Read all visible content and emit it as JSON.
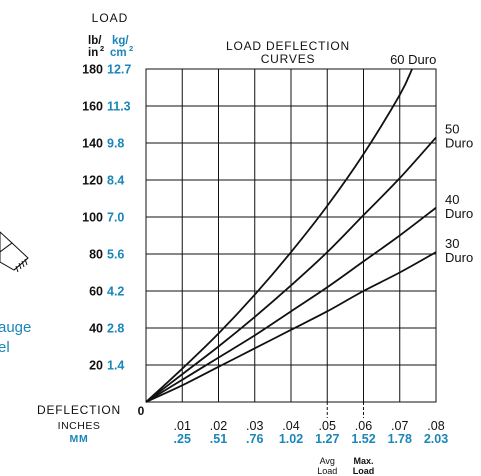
{
  "chart_data": {
    "type": "line",
    "title_line1": "LOAD DEFLECTION",
    "title_line2": "CURVES",
    "ylabel": "LOAD",
    "y_unit_1a": "lb/",
    "y_unit_1b": "in",
    "y_unit_1_sup": "2",
    "y_unit_2a": "kg/",
    "y_unit_2b": "cm",
    "y_unit_2_sup": "2",
    "y_ticks_lb": [
      "20",
      "40",
      "60",
      "80",
      "100",
      "120",
      "140",
      "160",
      "180"
    ],
    "y_ticks_kg": [
      "1.4",
      "2.8",
      "4.2",
      "5.6",
      "7.0",
      "8.4",
      "9.8",
      "11.3",
      "12.7"
    ],
    "origin_label": "0",
    "xlabel": "DEFLECTION",
    "xlabel_inches": "INCHES",
    "xlabel_mm": "MM",
    "x_ticks_in": [
      ".01",
      ".02",
      ".03",
      ".04",
      ".05",
      ".06",
      ".07",
      ".08"
    ],
    "x_ticks_mm": [
      ".25",
      ".51",
      ".76",
      "1.02",
      "1.27",
      "1.52",
      "1.78",
      "2.03"
    ],
    "xlim": [
      0,
      0.08
    ],
    "ylim": [
      0,
      180
    ],
    "markers": [
      {
        "x": 0.05,
        "line1": "Avg",
        "line2": "Load",
        "bold": false
      },
      {
        "x": 0.06,
        "line1": "Max.",
        "line2": "Load",
        "bold": true
      }
    ],
    "series": [
      {
        "name": "60 Duro",
        "name_line1": "60 Duro",
        "name_line2": "",
        "x": [
          0,
          0.01,
          0.02,
          0.03,
          0.04,
          0.05,
          0.06,
          0.07,
          0.0734
        ],
        "y": [
          0,
          18,
          37,
          58,
          81,
          106,
          134,
          166,
          180
        ]
      },
      {
        "name": "50 Duro",
        "name_line1": "50",
        "name_line2": "Duro",
        "x": [
          0,
          0.01,
          0.02,
          0.03,
          0.04,
          0.05,
          0.06,
          0.07,
          0.08
        ],
        "y": [
          0,
          15,
          30,
          46,
          63,
          81,
          101,
          121,
          143
        ]
      },
      {
        "name": "40 Duro",
        "name_line1": "40",
        "name_line2": "Duro",
        "x": [
          0,
          0.01,
          0.02,
          0.03,
          0.04,
          0.05,
          0.06,
          0.07,
          0.08
        ],
        "y": [
          0,
          12,
          24,
          36,
          49,
          62,
          76,
          90,
          105
        ]
      },
      {
        "name": "30 Duro",
        "name_line1": "30",
        "name_line2": "Duro",
        "x": [
          0,
          0.01,
          0.02,
          0.03,
          0.04,
          0.05,
          0.06,
          0.07,
          0.08
        ],
        "y": [
          0,
          9,
          19,
          29,
          39,
          49,
          60,
          70,
          81
        ]
      }
    ],
    "grid": true,
    "colors": {
      "text": "#111111",
      "accent": "#1a86b9"
    }
  },
  "side_text": {
    "line1": "auge",
    "line2": "el"
  }
}
